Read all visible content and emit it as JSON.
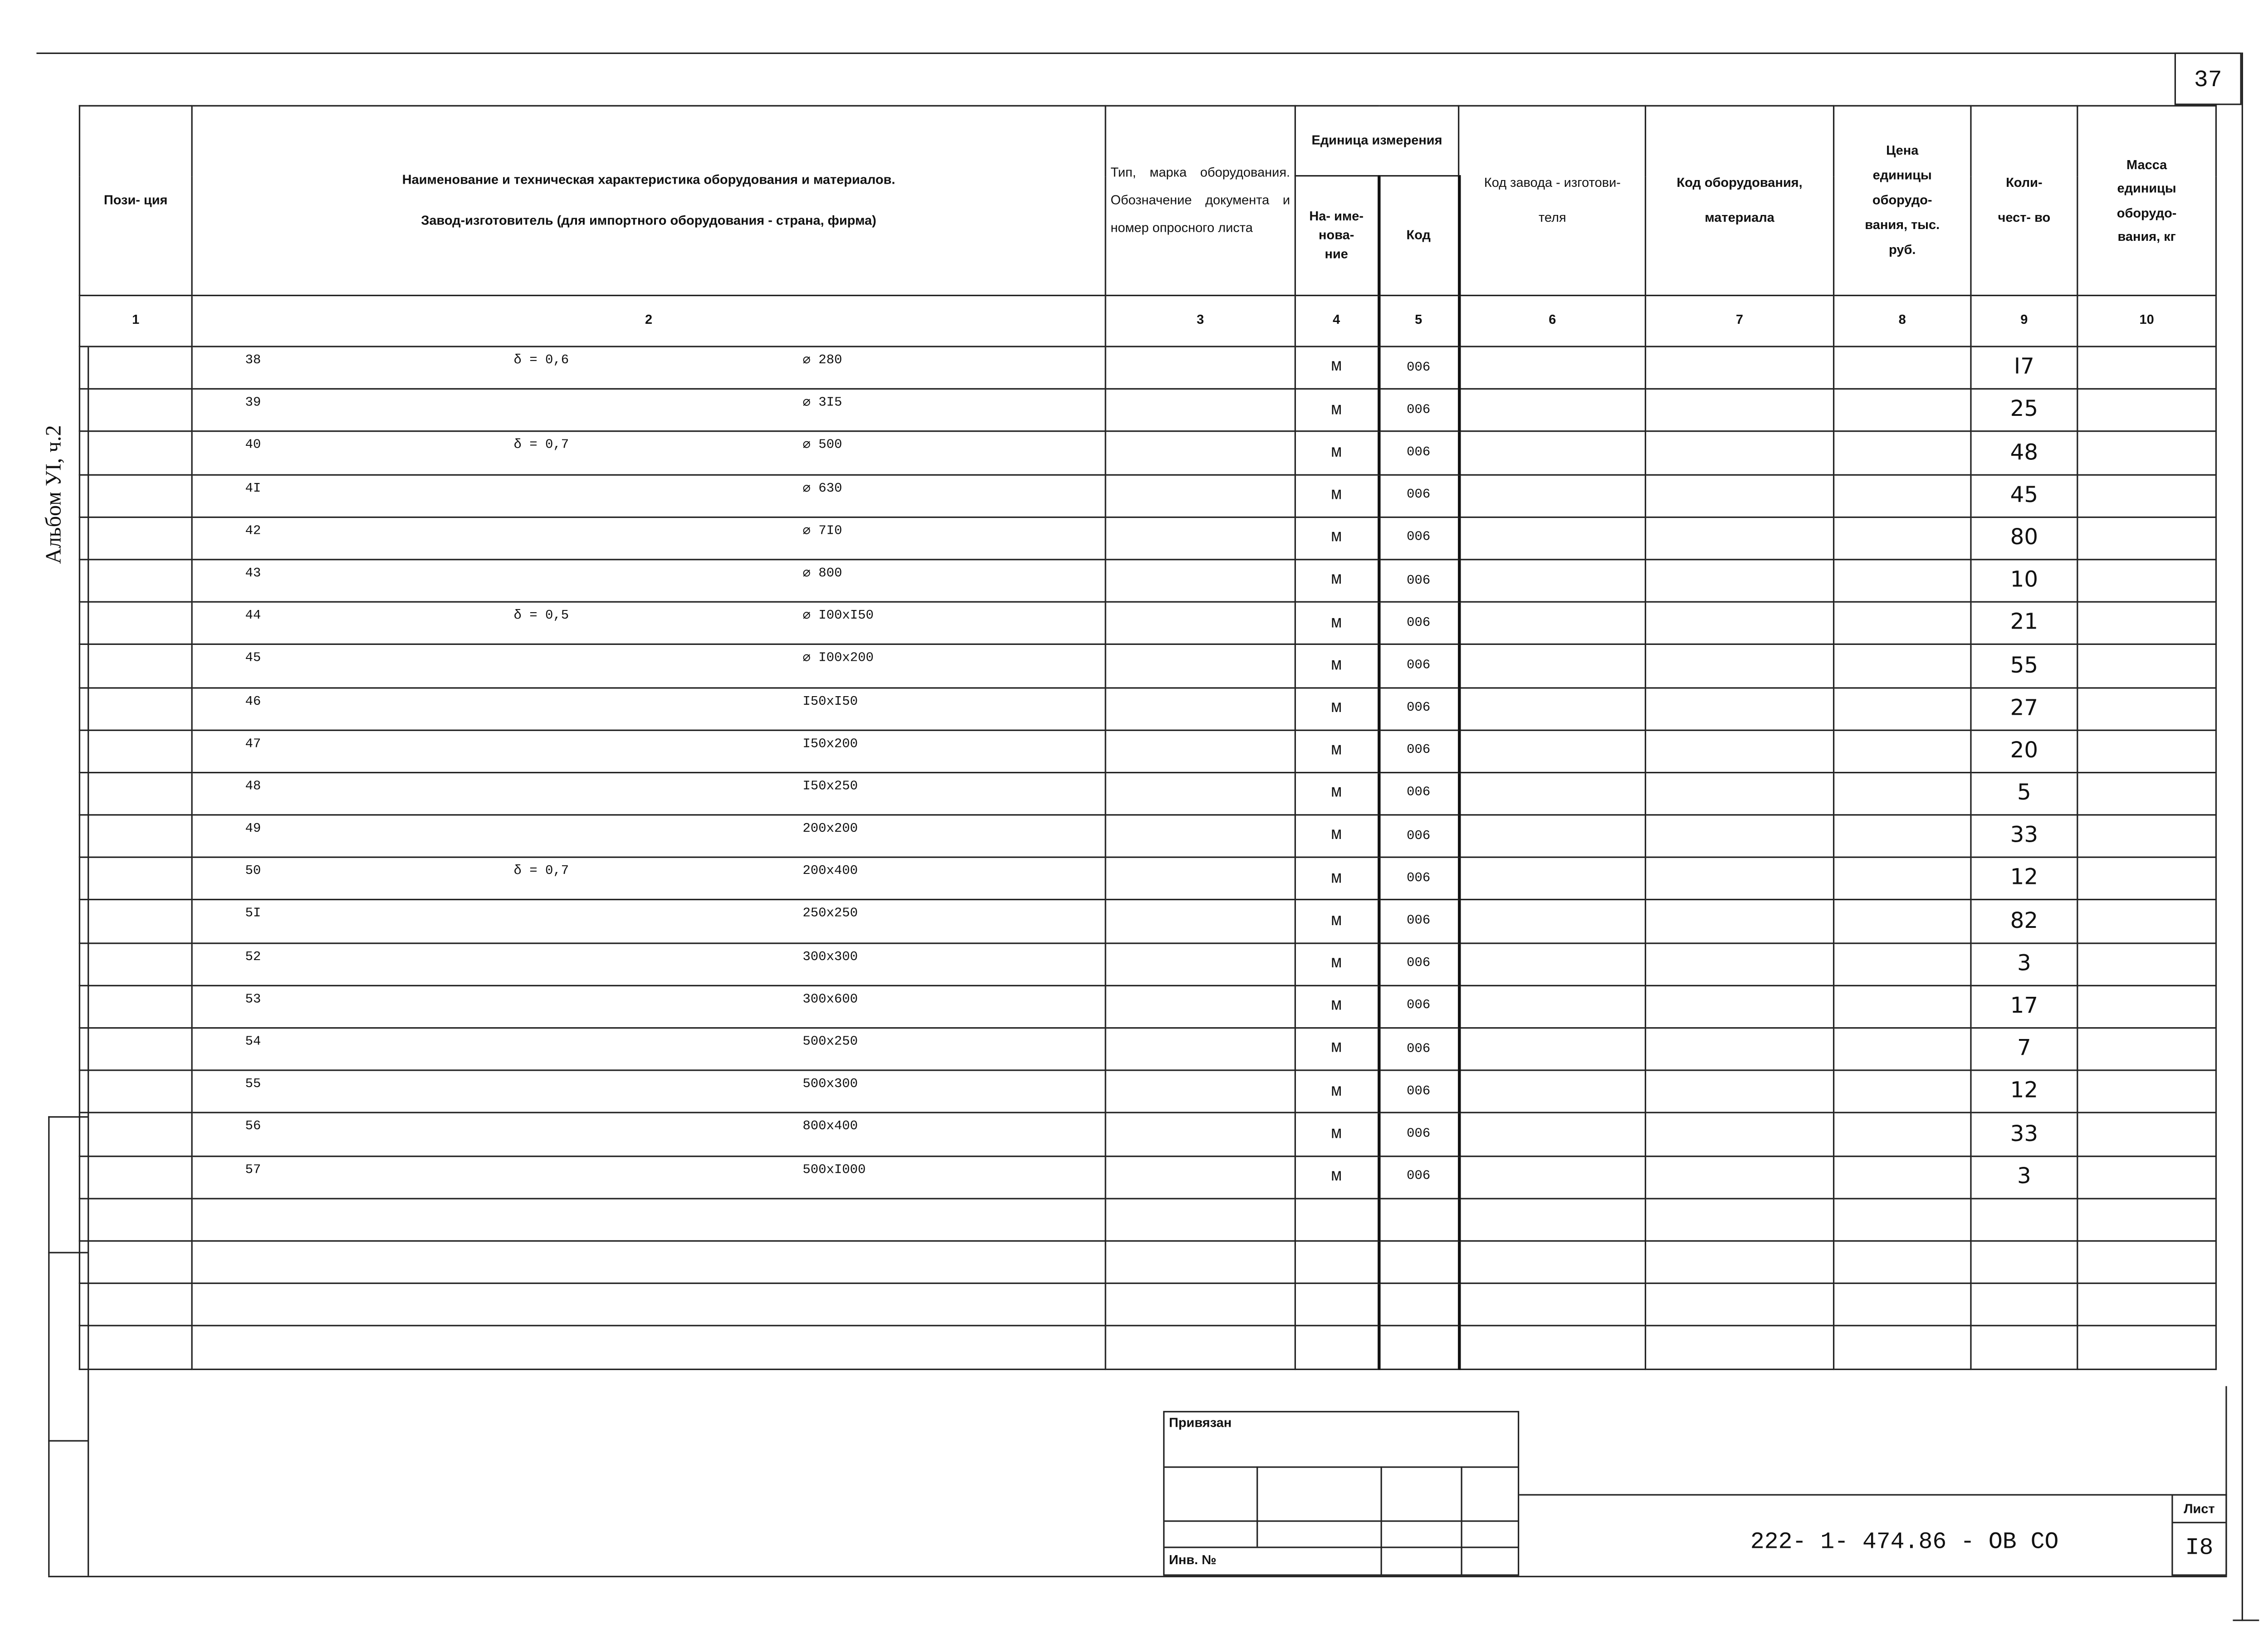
{
  "sheet_top_number": "37",
  "album_label": "Альбом УI, ч.2",
  "header": {
    "col1": "Пози- ция",
    "col2_line1": "Наименование и техническая характеристика оборудования и материалов.",
    "col2_line2": "Завод-изготовитель (для импортного оборудования - страна, фирма)",
    "col3": "Тип, марка оборудования. Обозначение документа и номер опросного листа",
    "unit_group": "Единица измерения",
    "col4": "На- име- нова- ние",
    "col5": "Код",
    "col6": "Код завода - изготови- теля",
    "col7": "Код оборудования, материала",
    "col8": "Цена единицы оборудо- вания, тыс. руб.",
    "col9": "Коли- чест- во",
    "col10": "Масса единицы оборудо- вания, кг"
  },
  "column_numbers": [
    "1",
    "2",
    "3",
    "4",
    "5",
    "6",
    "7",
    "8",
    "9",
    "10"
  ],
  "rows": [
    {
      "pos": "38",
      "delta": "δ = 0,6",
      "size": "⌀ 280",
      "unit": "м",
      "code": "006",
      "qty": "I7"
    },
    {
      "pos": "39",
      "delta": "",
      "size": "⌀ 3I5",
      "unit": "м",
      "code": "006",
      "qty": "25"
    },
    {
      "pos": "40",
      "delta": "δ = 0,7",
      "size": "⌀ 500",
      "unit": "м",
      "code": "006",
      "qty": "48"
    },
    {
      "pos": "4I",
      "delta": "",
      "size": "⌀ 630",
      "unit": "м",
      "code": "006",
      "qty": "45"
    },
    {
      "pos": "42",
      "delta": "",
      "size": "⌀ 7I0",
      "unit": "м",
      "code": "006",
      "qty": "80"
    },
    {
      "pos": "43",
      "delta": "",
      "size": "⌀ 800",
      "unit": "м",
      "code": "006",
      "qty": "10"
    },
    {
      "pos": "44",
      "delta": "δ = 0,5",
      "size": "⌀ I00xI50",
      "unit": "м",
      "code": "006",
      "qty": "21"
    },
    {
      "pos": "45",
      "delta": "",
      "size": "⌀ I00x200",
      "unit": "м",
      "code": "006",
      "qty": "55"
    },
    {
      "pos": "46",
      "delta": "",
      "size": "I50xI50",
      "unit": "м",
      "code": "006",
      "qty": "27"
    },
    {
      "pos": "47",
      "delta": "",
      "size": "I50x200",
      "unit": "м",
      "code": "006",
      "qty": "20"
    },
    {
      "pos": "48",
      "delta": "",
      "size": "I50x250",
      "unit": "м",
      "code": "006",
      "qty": "5"
    },
    {
      "pos": "49",
      "delta": "",
      "size": "200x200",
      "unit": "м",
      "code": "006",
      "qty": "33"
    },
    {
      "pos": "50",
      "delta": "δ = 0,7",
      "size": "200x400",
      "unit": "м",
      "code": "006",
      "qty": "12"
    },
    {
      "pos": "5I",
      "delta": "",
      "size": "250x250",
      "unit": "м",
      "code": "006",
      "qty": "82"
    },
    {
      "pos": "52",
      "delta": "",
      "size": "300x300",
      "unit": "м",
      "code": "006",
      "qty": "3"
    },
    {
      "pos": "53",
      "delta": "",
      "size": "300x600",
      "unit": "м",
      "code": "006",
      "qty": "17"
    },
    {
      "pos": "54",
      "delta": "",
      "size": "500x250",
      "unit": "м",
      "code": "006",
      "qty": "7"
    },
    {
      "pos": "55",
      "delta": "",
      "size": "500x300",
      "unit": "м",
      "code": "006",
      "qty": "12"
    },
    {
      "pos": "56",
      "delta": "",
      "size": "800x400",
      "unit": "м",
      "code": "006",
      "qty": "33"
    },
    {
      "pos": "57",
      "delta": "",
      "size": "500xI000",
      "unit": "м",
      "code": "006",
      "qty": "3"
    }
  ],
  "title_block": {
    "linked_label": "Привязан",
    "inv_label": "Инв. №",
    "document_code": "222- 1- 474.86 - ОВ СО",
    "sheet_label": "Лист",
    "sheet_number": "I8"
  }
}
